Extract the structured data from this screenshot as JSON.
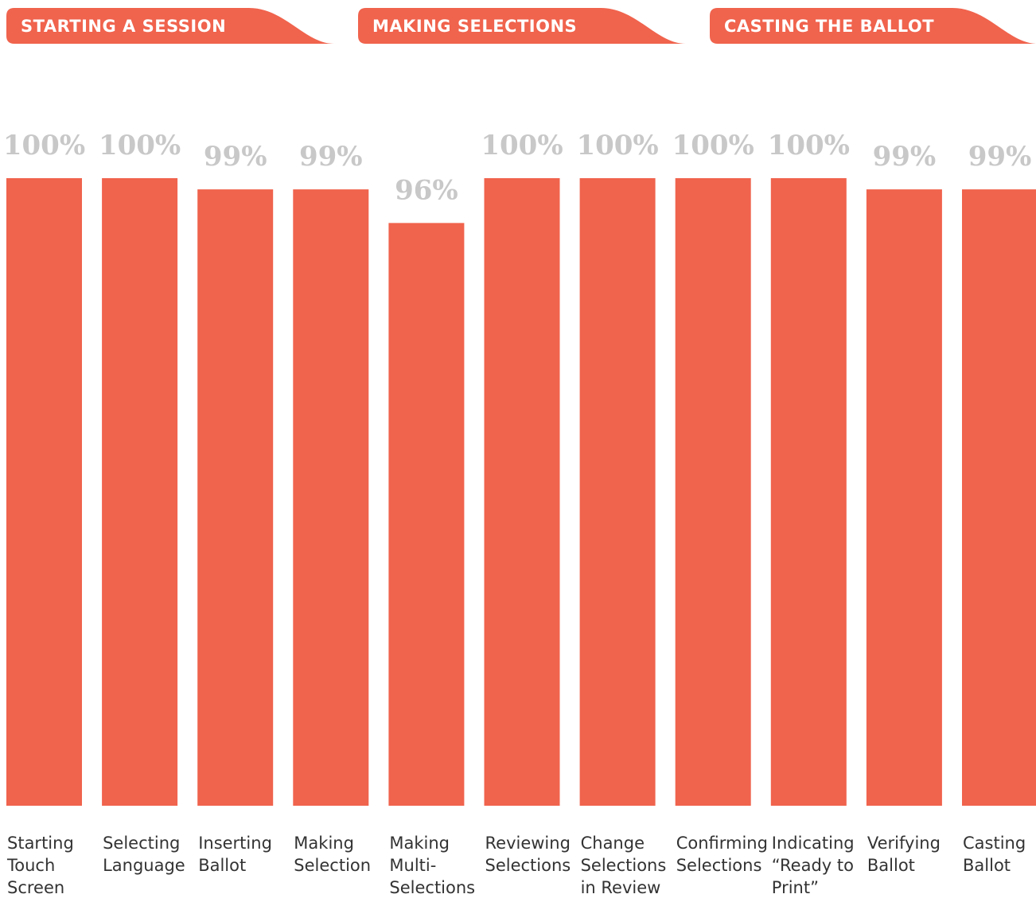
{
  "chart_data": {
    "type": "bar",
    "sections": [
      "STARTING A SESSION",
      "MAKING SELECTIONS",
      "CASTING THE BALLOT"
    ],
    "categories": [
      "Starting Touch Screen",
      "Selecting Language",
      "Inserting Ballot",
      "Making Selection",
      "Making Multi-Selections",
      "Reviewing Selections",
      "Change Selections in Review",
      "Confirming Selections",
      "Indicating “Ready to Print”",
      "Verifying Ballot",
      "Casting Ballot"
    ],
    "values": [
      100,
      100,
      99,
      99,
      96,
      100,
      100,
      100,
      100,
      99,
      99
    ],
    "value_labels": [
      "100%",
      "100%",
      "99%",
      "99%",
      "96%",
      "100%",
      "100%",
      "100%",
      "100%",
      "99%",
      "99%"
    ],
    "color": "#f0634d",
    "ylim": [
      44,
      100
    ]
  }
}
